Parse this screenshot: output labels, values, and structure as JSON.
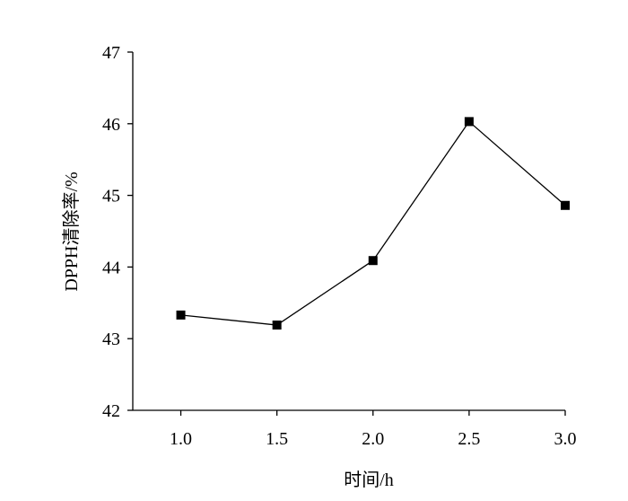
{
  "chart_data": {
    "type": "line",
    "title": "",
    "xlabel": "时间/h",
    "ylabel": "DPPH清除率/%",
    "x_ticks": [
      "1.0",
      "1.5",
      "2.0",
      "2.5",
      "3.0"
    ],
    "y_ticks": [
      "42",
      "43",
      "44",
      "45",
      "46",
      "47"
    ],
    "xlim": [
      0.75,
      3.0
    ],
    "ylim": [
      42,
      47
    ],
    "grid": false,
    "legend": "none",
    "series": [
      {
        "x": [
          1.0,
          1.5,
          2.0,
          2.5,
          3.0
        ],
        "y": [
          43.33,
          43.19,
          44.09,
          46.03,
          44.86
        ],
        "marker": "square",
        "color": "#000000"
      }
    ]
  }
}
